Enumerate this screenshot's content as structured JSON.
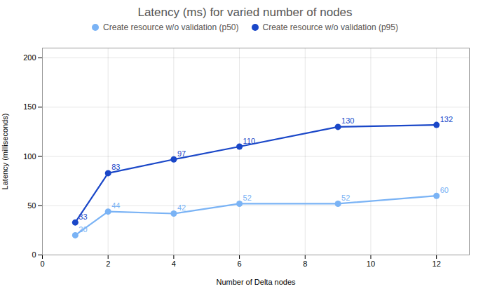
{
  "chart_data": {
    "type": "line",
    "title": "Latency (ms) for varied number of nodes",
    "xlabel": "Number of Delta nodes",
    "ylabel": "Latency (milliseconds)",
    "x": [
      1,
      2,
      4,
      6,
      9,
      12
    ],
    "series": [
      {
        "name": "Create resource w/o validation (p50)",
        "color": "#7ab3f5",
        "values": [
          20,
          44,
          42,
          52,
          52,
          60
        ]
      },
      {
        "name": "Create resource w/o validation (p95)",
        "color": "#1a47c8",
        "values": [
          33,
          83,
          97,
          110,
          130,
          132
        ]
      }
    ],
    "xlim": [
      0,
      13
    ],
    "ylim": [
      0,
      210
    ],
    "xticks": [
      0,
      2,
      4,
      6,
      8,
      10,
      12
    ],
    "yticks": [
      0,
      50,
      100,
      150,
      200
    ],
    "grid": true,
    "legend": "top",
    "marker": "circle",
    "data_labels": true
  }
}
